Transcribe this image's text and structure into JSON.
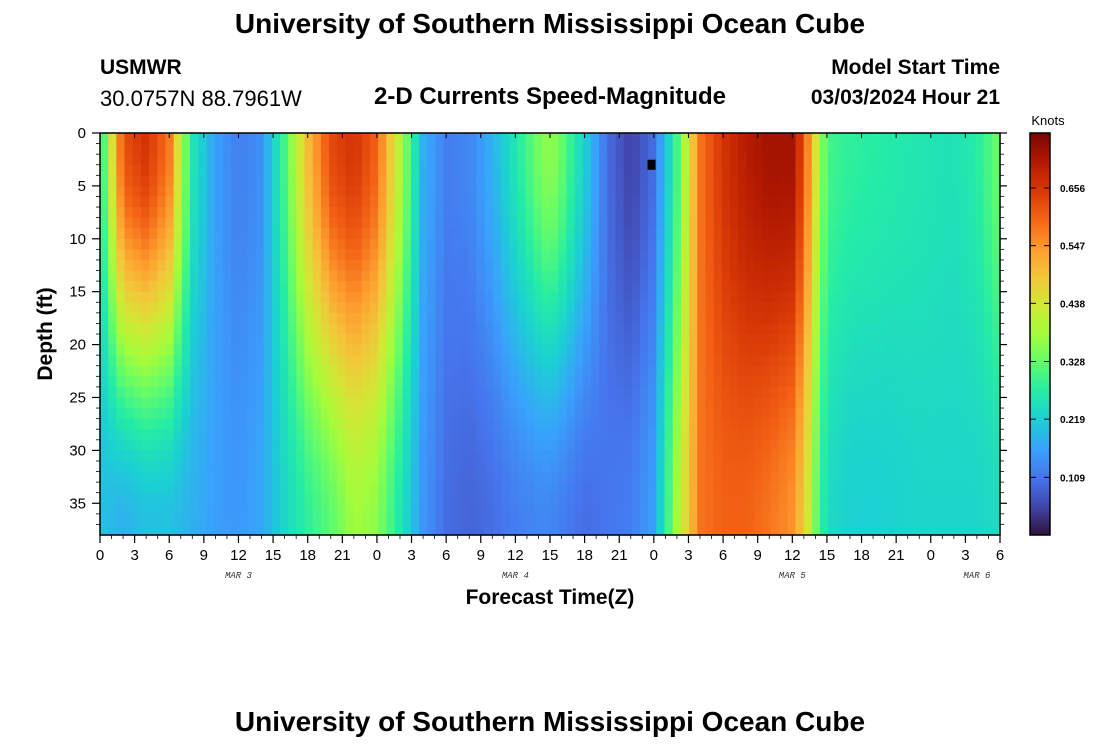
{
  "header": {
    "title": "University of Southern Mississippi Ocean Cube",
    "station_name": "USMWR",
    "station_coords": "30.0757N  88.7961W",
    "chart_heading": "2-D Currents Speed-Magnitude",
    "model_start_label": "Model Start Time",
    "model_start_value": "03/03/2024 Hour 21"
  },
  "footer": {
    "title": "University of Southern Mississippi Ocean Cube"
  },
  "chart_data": {
    "type": "heatmap",
    "title": "2-D Currents Speed-Magnitude",
    "xlabel": "Forecast Time(Z)",
    "ylabel": "Depth (ft)",
    "x_hours_range": [
      0,
      78
    ],
    "x_tick_labels": [
      "0",
      "3",
      "6",
      "9",
      "12",
      "15",
      "18",
      "21",
      "0",
      "3",
      "6",
      "9",
      "12",
      "15",
      "18",
      "21",
      "0",
      "3",
      "6",
      "9",
      "12",
      "15",
      "18",
      "21",
      "0",
      "3",
      "6"
    ],
    "day_labels": [
      {
        "label": "MAR 3",
        "hour": 12
      },
      {
        "label": "MAR 4",
        "hour": 36
      },
      {
        "label": "MAR 5",
        "hour": 60
      },
      {
        "label": "MAR 6",
        "hour": 76
      }
    ],
    "y_range": [
      0,
      38
    ],
    "y_ticks": [
      0,
      5,
      10,
      15,
      20,
      25,
      30,
      35
    ],
    "colorbar": {
      "unit": "Knots",
      "min": 0.0,
      "max": 0.76,
      "tick_labels": [
        "0.656",
        "0.547",
        "0.438",
        "0.328",
        "0.219",
        "0.109"
      ],
      "tick_values": [
        0.656,
        0.547,
        0.438,
        0.328,
        0.219,
        0.109
      ]
    },
    "columns": [
      {
        "hour": 0,
        "top": 0.25,
        "bottom": 0.2
      },
      {
        "hour": 2,
        "top": 0.62,
        "bottom": 0.18
      },
      {
        "hour": 4,
        "top": 0.66,
        "bottom": 0.2
      },
      {
        "hour": 6,
        "top": 0.58,
        "bottom": 0.2
      },
      {
        "hour": 7,
        "top": 0.4,
        "bottom": 0.19
      },
      {
        "hour": 8,
        "top": 0.26,
        "bottom": 0.18
      },
      {
        "hour": 10,
        "top": 0.16,
        "bottom": 0.16
      },
      {
        "hour": 12,
        "top": 0.12,
        "bottom": 0.15
      },
      {
        "hour": 14,
        "top": 0.14,
        "bottom": 0.17
      },
      {
        "hour": 16,
        "top": 0.3,
        "bottom": 0.23
      },
      {
        "hour": 18,
        "top": 0.5,
        "bottom": 0.28
      },
      {
        "hour": 20,
        "top": 0.63,
        "bottom": 0.32
      },
      {
        "hour": 22,
        "top": 0.66,
        "bottom": 0.38
      },
      {
        "hour": 24,
        "top": 0.6,
        "bottom": 0.36
      },
      {
        "hour": 26,
        "top": 0.4,
        "bottom": 0.26
      },
      {
        "hour": 28,
        "top": 0.18,
        "bottom": 0.15
      },
      {
        "hour": 30,
        "top": 0.12,
        "bottom": 0.1
      },
      {
        "hour": 32,
        "top": 0.13,
        "bottom": 0.09
      },
      {
        "hour": 34,
        "top": 0.18,
        "bottom": 0.1
      },
      {
        "hour": 36,
        "top": 0.26,
        "bottom": 0.12
      },
      {
        "hour": 38,
        "top": 0.34,
        "bottom": 0.13
      },
      {
        "hour": 39,
        "top": 0.37,
        "bottom": 0.13
      },
      {
        "hour": 40,
        "top": 0.33,
        "bottom": 0.12
      },
      {
        "hour": 42,
        "top": 0.22,
        "bottom": 0.1
      },
      {
        "hour": 44,
        "top": 0.1,
        "bottom": 0.11
      },
      {
        "hour": 46,
        "top": 0.05,
        "bottom": 0.12
      },
      {
        "hour": 48,
        "top": 0.1,
        "bottom": 0.16
      },
      {
        "hour": 50,
        "top": 0.3,
        "bottom": 0.38
      },
      {
        "hour": 52,
        "top": 0.58,
        "bottom": 0.58
      },
      {
        "hour": 54,
        "top": 0.66,
        "bottom": 0.6
      },
      {
        "hour": 56,
        "top": 0.7,
        "bottom": 0.6
      },
      {
        "hour": 58,
        "top": 0.72,
        "bottom": 0.58
      },
      {
        "hour": 60,
        "top": 0.72,
        "bottom": 0.55
      },
      {
        "hour": 61,
        "top": 0.62,
        "bottom": 0.48
      },
      {
        "hour": 62,
        "top": 0.45,
        "bottom": 0.34
      },
      {
        "hour": 63,
        "top": 0.3,
        "bottom": 0.24
      },
      {
        "hour": 65,
        "top": 0.28,
        "bottom": 0.22
      },
      {
        "hour": 68,
        "top": 0.27,
        "bottom": 0.22
      },
      {
        "hour": 71,
        "top": 0.26,
        "bottom": 0.23
      },
      {
        "hour": 74,
        "top": 0.25,
        "bottom": 0.23
      },
      {
        "hour": 76,
        "top": 0.27,
        "bottom": 0.23
      },
      {
        "hour": 78,
        "top": 0.34,
        "bottom": 0.24
      }
    ],
    "marker": {
      "hour": 47.8,
      "depth": 3.0,
      "color": "#000000"
    },
    "colors": [
      "#30123b",
      "#4145ab",
      "#4675ed",
      "#39a2fc",
      "#1bcfd4",
      "#24eca6",
      "#61fc6c",
      "#a4fc3b",
      "#d1e834",
      "#f3c63a",
      "#fe9b2d",
      "#f36315",
      "#d93806",
      "#b11901",
      "#7a0402"
    ]
  }
}
